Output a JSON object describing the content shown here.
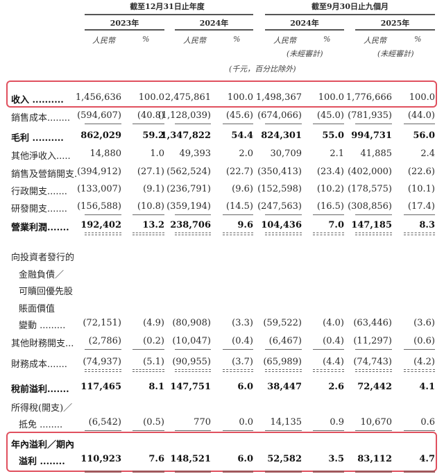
{
  "header": {
    "group1": "截至12月31日止年度",
    "group2": "截至9月30日止九個月",
    "years": [
      "2023年",
      "2024年",
      "2024年",
      "2025年"
    ],
    "currency": "人民幣",
    "percent": "%",
    "unaudited": "(未經審計)",
    "unit_note": "(千元，百分比除外)"
  },
  "highlight_color": "#e0505e",
  "rows": [
    {
      "label": [
        "收入"
      ],
      "dots": " ..........",
      "values": [
        "1,456,636",
        "100.0",
        "2,475,861",
        "100.0",
        "1,498,367",
        "100.0",
        "1,776,666",
        "100.0"
      ],
      "bold": false,
      "label_bold": true,
      "rule": "none"
    },
    {
      "label": [
        "銷售成本"
      ],
      "dots": "........",
      "values": [
        "(594,607)",
        "(40.8)",
        "(1,128,039)",
        "(45.6)",
        "(674,066)",
        "(45.0)",
        "(781,935)",
        "(44.0)"
      ],
      "bold": false,
      "rule": "single"
    },
    {
      "label": [
        "毛利"
      ],
      "dots": " ..........",
      "values": [
        "862,029",
        "59.2",
        "1,347,822",
        "54.4",
        "824,301",
        "55.0",
        "994,731",
        "56.0"
      ],
      "bold": true,
      "rule": "none"
    },
    {
      "label": [
        "其他淨收入"
      ],
      "dots": ".....",
      "values": [
        "14,880",
        "1.0",
        "49,393",
        "2.0",
        "30,709",
        "2.1",
        "41,885",
        "2.4"
      ],
      "bold": false,
      "rule": "none"
    },
    {
      "label": [
        "銷售及營銷開支"
      ],
      "dots": ".",
      "values": [
        "(394,912)",
        "(27.1)",
        "(562,524)",
        "(22.7)",
        "(350,413)",
        "(23.4)",
        "(402,000)",
        "(22.6)"
      ],
      "bold": false,
      "rule": "none"
    },
    {
      "label": [
        "行政開支"
      ],
      "dots": ".......",
      "values": [
        "(133,007)",
        "(9.1)",
        "(236,791)",
        "(9.6)",
        "(152,598)",
        "(10.2)",
        "(178,575)",
        "(10.1)"
      ],
      "bold": false,
      "rule": "none"
    },
    {
      "label": [
        "研發開支"
      ],
      "dots": ".......",
      "values": [
        "(156,588)",
        "(10.8)",
        "(359,194)",
        "(14.5)",
        "(247,563)",
        "(16.5)",
        "(308,856)",
        "(17.4)"
      ],
      "bold": false,
      "rule": "single"
    },
    {
      "label": [
        "營業利潤"
      ],
      "dots": ".......",
      "values": [
        "192,402",
        "13.2",
        "238,706",
        "9.6",
        "104,436",
        "7.0",
        "147,185",
        "8.3"
      ],
      "bold": true,
      "rule": "double-dashed"
    },
    {
      "label": [
        "向投資者發行的",
        "金融負債／",
        "可贖回優先股",
        "賬面價值",
        "變動"
      ],
      "dots": " .........",
      "values": [
        "(72,151)",
        "(4.9)",
        "(80,908)",
        "(3.3)",
        "(59,522)",
        "(4.0)",
        "(63,446)",
        "(3.6)"
      ],
      "bold": false,
      "rule": "none"
    },
    {
      "label": [
        "其他財務開支"
      ],
      "dots": "...",
      "values": [
        "(2,786)",
        "(0.2)",
        "(10,047)",
        "(0.4)",
        "(6,467)",
        "(0.4)",
        "(11,297)",
        "(0.6)"
      ],
      "bold": false,
      "rule": "single"
    },
    {
      "label": [
        "財務成本"
      ],
      "dots": ".......",
      "values": [
        "(74,937)",
        "(5.1)",
        "(90,955)",
        "(3.7)",
        "(65,989)",
        "(4.4)",
        "(74,743)",
        "(4.2)"
      ],
      "bold": false,
      "rule": "double-dashed"
    },
    {
      "label": [
        "稅前溢利"
      ],
      "dots": ".......",
      "values": [
        "117,465",
        "8.1",
        "147,751",
        "6.0",
        "38,447",
        "2.6",
        "72,442",
        "4.1"
      ],
      "bold": true,
      "rule": "none"
    },
    {
      "label": [
        "所得稅(開支)／",
        "抵免"
      ],
      "dots": " ........",
      "values": [
        "(6,542)",
        "(0.5)",
        "770",
        "0.0",
        "14,135",
        "0.9",
        "10,670",
        "0.6"
      ],
      "bold": false,
      "rule": "single"
    },
    {
      "label": [
        "年內溢利／期內",
        "溢利"
      ],
      "dots": " ........",
      "values": [
        "110,923",
        "7.6",
        "148,521",
        "6.0",
        "52,582",
        "3.5",
        "83,112",
        "4.7"
      ],
      "bold": true,
      "rule": "thick-red"
    }
  ]
}
